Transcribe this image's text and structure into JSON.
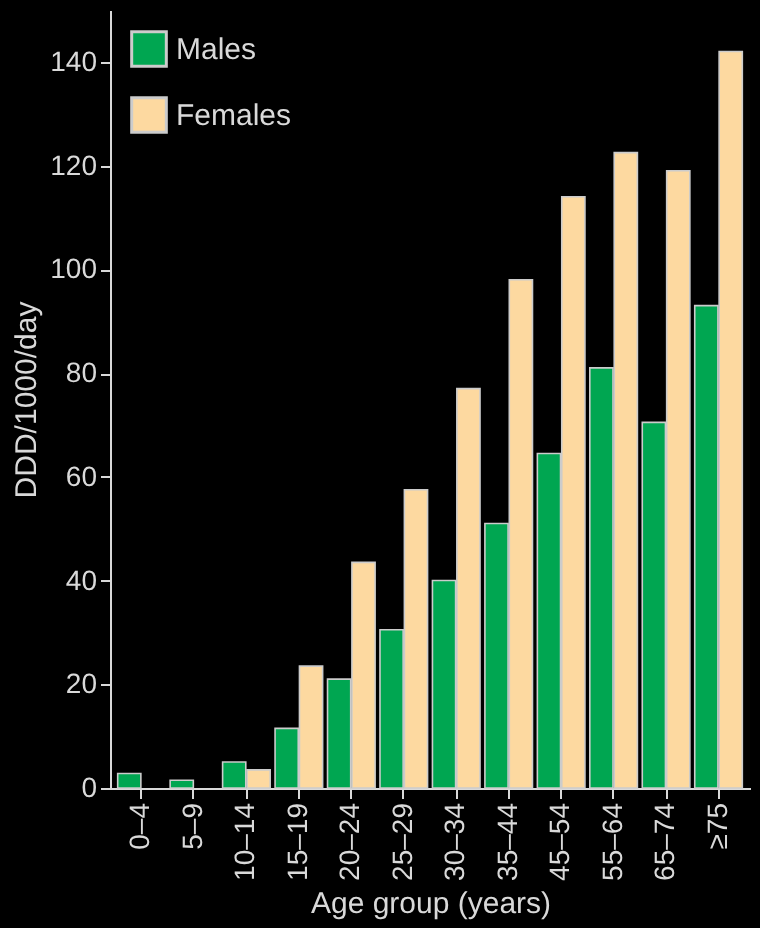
{
  "chart_data": {
    "type": "bar",
    "xlabel": "Age group (years)",
    "ylabel": "DDD/1000/day",
    "categories": [
      "0–4",
      "5–9",
      "10–14",
      "15–19",
      "20–24",
      "25–29",
      "30–34",
      "35–44",
      "45–54",
      "55–64",
      "65–74",
      "≥75"
    ],
    "series": [
      {
        "name": "Males",
        "color": "#00a651",
        "values": [
          2.8,
          1.5,
          5,
          11.5,
          21,
          30.5,
          40,
          51,
          64.5,
          81,
          70.5,
          93
        ]
      },
      {
        "name": "Females",
        "color": "#fdd9a0",
        "values": [
          null,
          null,
          3.5,
          23.5,
          43.5,
          57.5,
          77,
          98,
          114,
          122.5,
          119,
          142
        ]
      }
    ],
    "ylim": [
      0,
      150
    ],
    "yticks": [
      0,
      20,
      40,
      60,
      80,
      100,
      120,
      140
    ],
    "grid": false,
    "legend": "top left"
  }
}
